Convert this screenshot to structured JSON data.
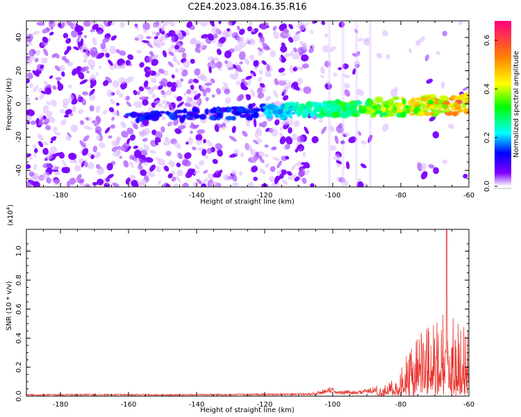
{
  "title": "C2E4.2023.084.16.35.R16",
  "chart_data": [
    {
      "type": "heatmap",
      "xlabel": "Height of straight line (km)",
      "ylabel": "Frequency (Hz)",
      "xlim": [
        -190,
        -60
      ],
      "ylim": [
        -50,
        50
      ],
      "xticks": [
        -180,
        -160,
        -140,
        -120,
        -100,
        -80,
        -60
      ],
      "yticks": [
        -40,
        -20,
        0,
        20,
        40
      ],
      "colorbar": {
        "label": "Normalized spectral amplitude",
        "range": [
          0.0,
          0.68
        ],
        "ticks": [
          "0.0",
          "0.2",
          "0.4",
          "0.6"
        ],
        "colors": [
          "#ffffff",
          "#8000ff",
          "#0000ff",
          "#00ffff",
          "#00ff00",
          "#ffff00",
          "#ff8000",
          "#ff0080"
        ]
      },
      "signal_band": {
        "from_x": -160,
        "to_x": -60,
        "start_y": -8,
        "end_y": 0,
        "peak_amplitude": 0.68
      },
      "noise_region": {
        "dense_until_x": -108,
        "sparse_until_x": -90
      }
    },
    {
      "type": "line",
      "xlabel": "Height of straight line (km)",
      "ylabel": "SNR (10 * v/v)",
      "exponent": "(x10",
      "exponent_power": "4",
      "exponent_close": ")",
      "xlim": [
        -190,
        -60
      ],
      "ylim": [
        0,
        1.15
      ],
      "xticks": [
        -180,
        -160,
        -140,
        -120,
        -100,
        -80,
        -60
      ],
      "yticks": [
        "0.0",
        "0.2",
        "0.4",
        "0.6",
        "0.8",
        "1.0"
      ],
      "series": [
        {
          "color": "#e8342c",
          "envelope": [
            [
              -190,
              0.01
            ],
            [
              -170,
              0.012
            ],
            [
              -150,
              0.01
            ],
            [
              -130,
              0.012
            ],
            [
              -110,
              0.015
            ],
            [
              -105,
              0.02
            ],
            [
              -101,
              0.05
            ],
            [
              -98,
              0.03
            ],
            [
              -92,
              0.03
            ],
            [
              -88,
              0.05
            ],
            [
              -85,
              0.08
            ],
            [
              -82,
              0.12
            ],
            [
              -80,
              0.2
            ],
            [
              -78,
              0.3
            ],
            [
              -76,
              0.38
            ],
            [
              -74,
              0.45
            ],
            [
              -72,
              0.5
            ],
            [
              -70,
              0.55
            ],
            [
              -68,
              0.58
            ],
            [
              -66.5,
              1.15
            ],
            [
              -66,
              0.6
            ],
            [
              -64,
              0.55
            ],
            [
              -62,
              0.5
            ],
            [
              -60,
              0.45
            ]
          ]
        }
      ]
    }
  ]
}
